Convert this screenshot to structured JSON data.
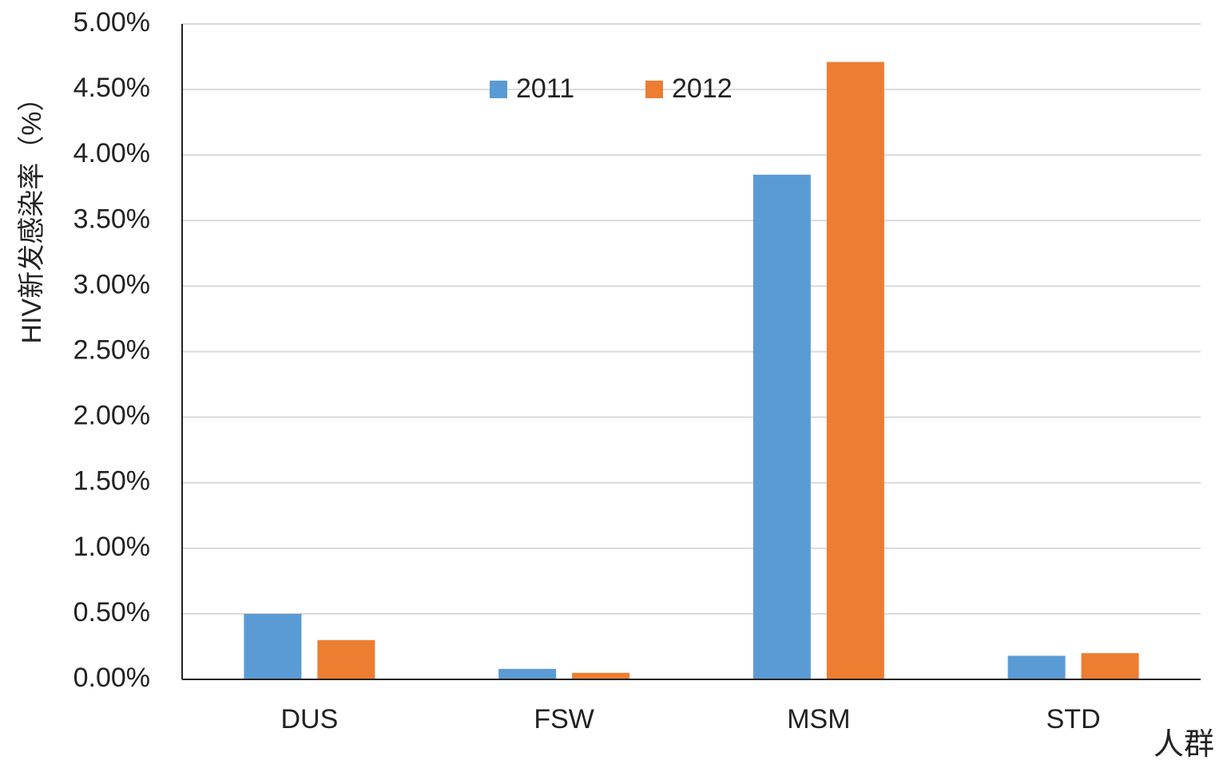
{
  "chart_data": {
    "type": "bar",
    "y_label": "HIV新发感染率（%）",
    "x_label": "人群",
    "categories": [
      "DUS",
      "FSW",
      "MSM",
      "STD"
    ],
    "series": [
      {
        "name": "2011",
        "color": "#5b9bd5",
        "values": [
          0.5,
          0.08,
          3.85,
          0.18
        ]
      },
      {
        "name": "2012",
        "color": "#ed7d31",
        "values": [
          0.3,
          0.05,
          4.71,
          0.2
        ]
      }
    ],
    "ylim": [
      0,
      5
    ],
    "yticks": [
      {
        "value": 0,
        "label": "0.00%"
      },
      {
        "value": 0.5,
        "label": "0.50%"
      },
      {
        "value": 1,
        "label": "1.00%"
      },
      {
        "value": 1.5,
        "label": "1.50%"
      },
      {
        "value": 2,
        "label": "2.00%"
      },
      {
        "value": 2.5,
        "label": "2.50%"
      },
      {
        "value": 3,
        "label": "3.00%"
      },
      {
        "value": 3.5,
        "label": "3.50%"
      },
      {
        "value": 4,
        "label": "4.00%"
      },
      {
        "value": 4.5,
        "label": "4.50%"
      },
      {
        "value": 5,
        "label": "5.00%"
      }
    ],
    "grid": true
  }
}
